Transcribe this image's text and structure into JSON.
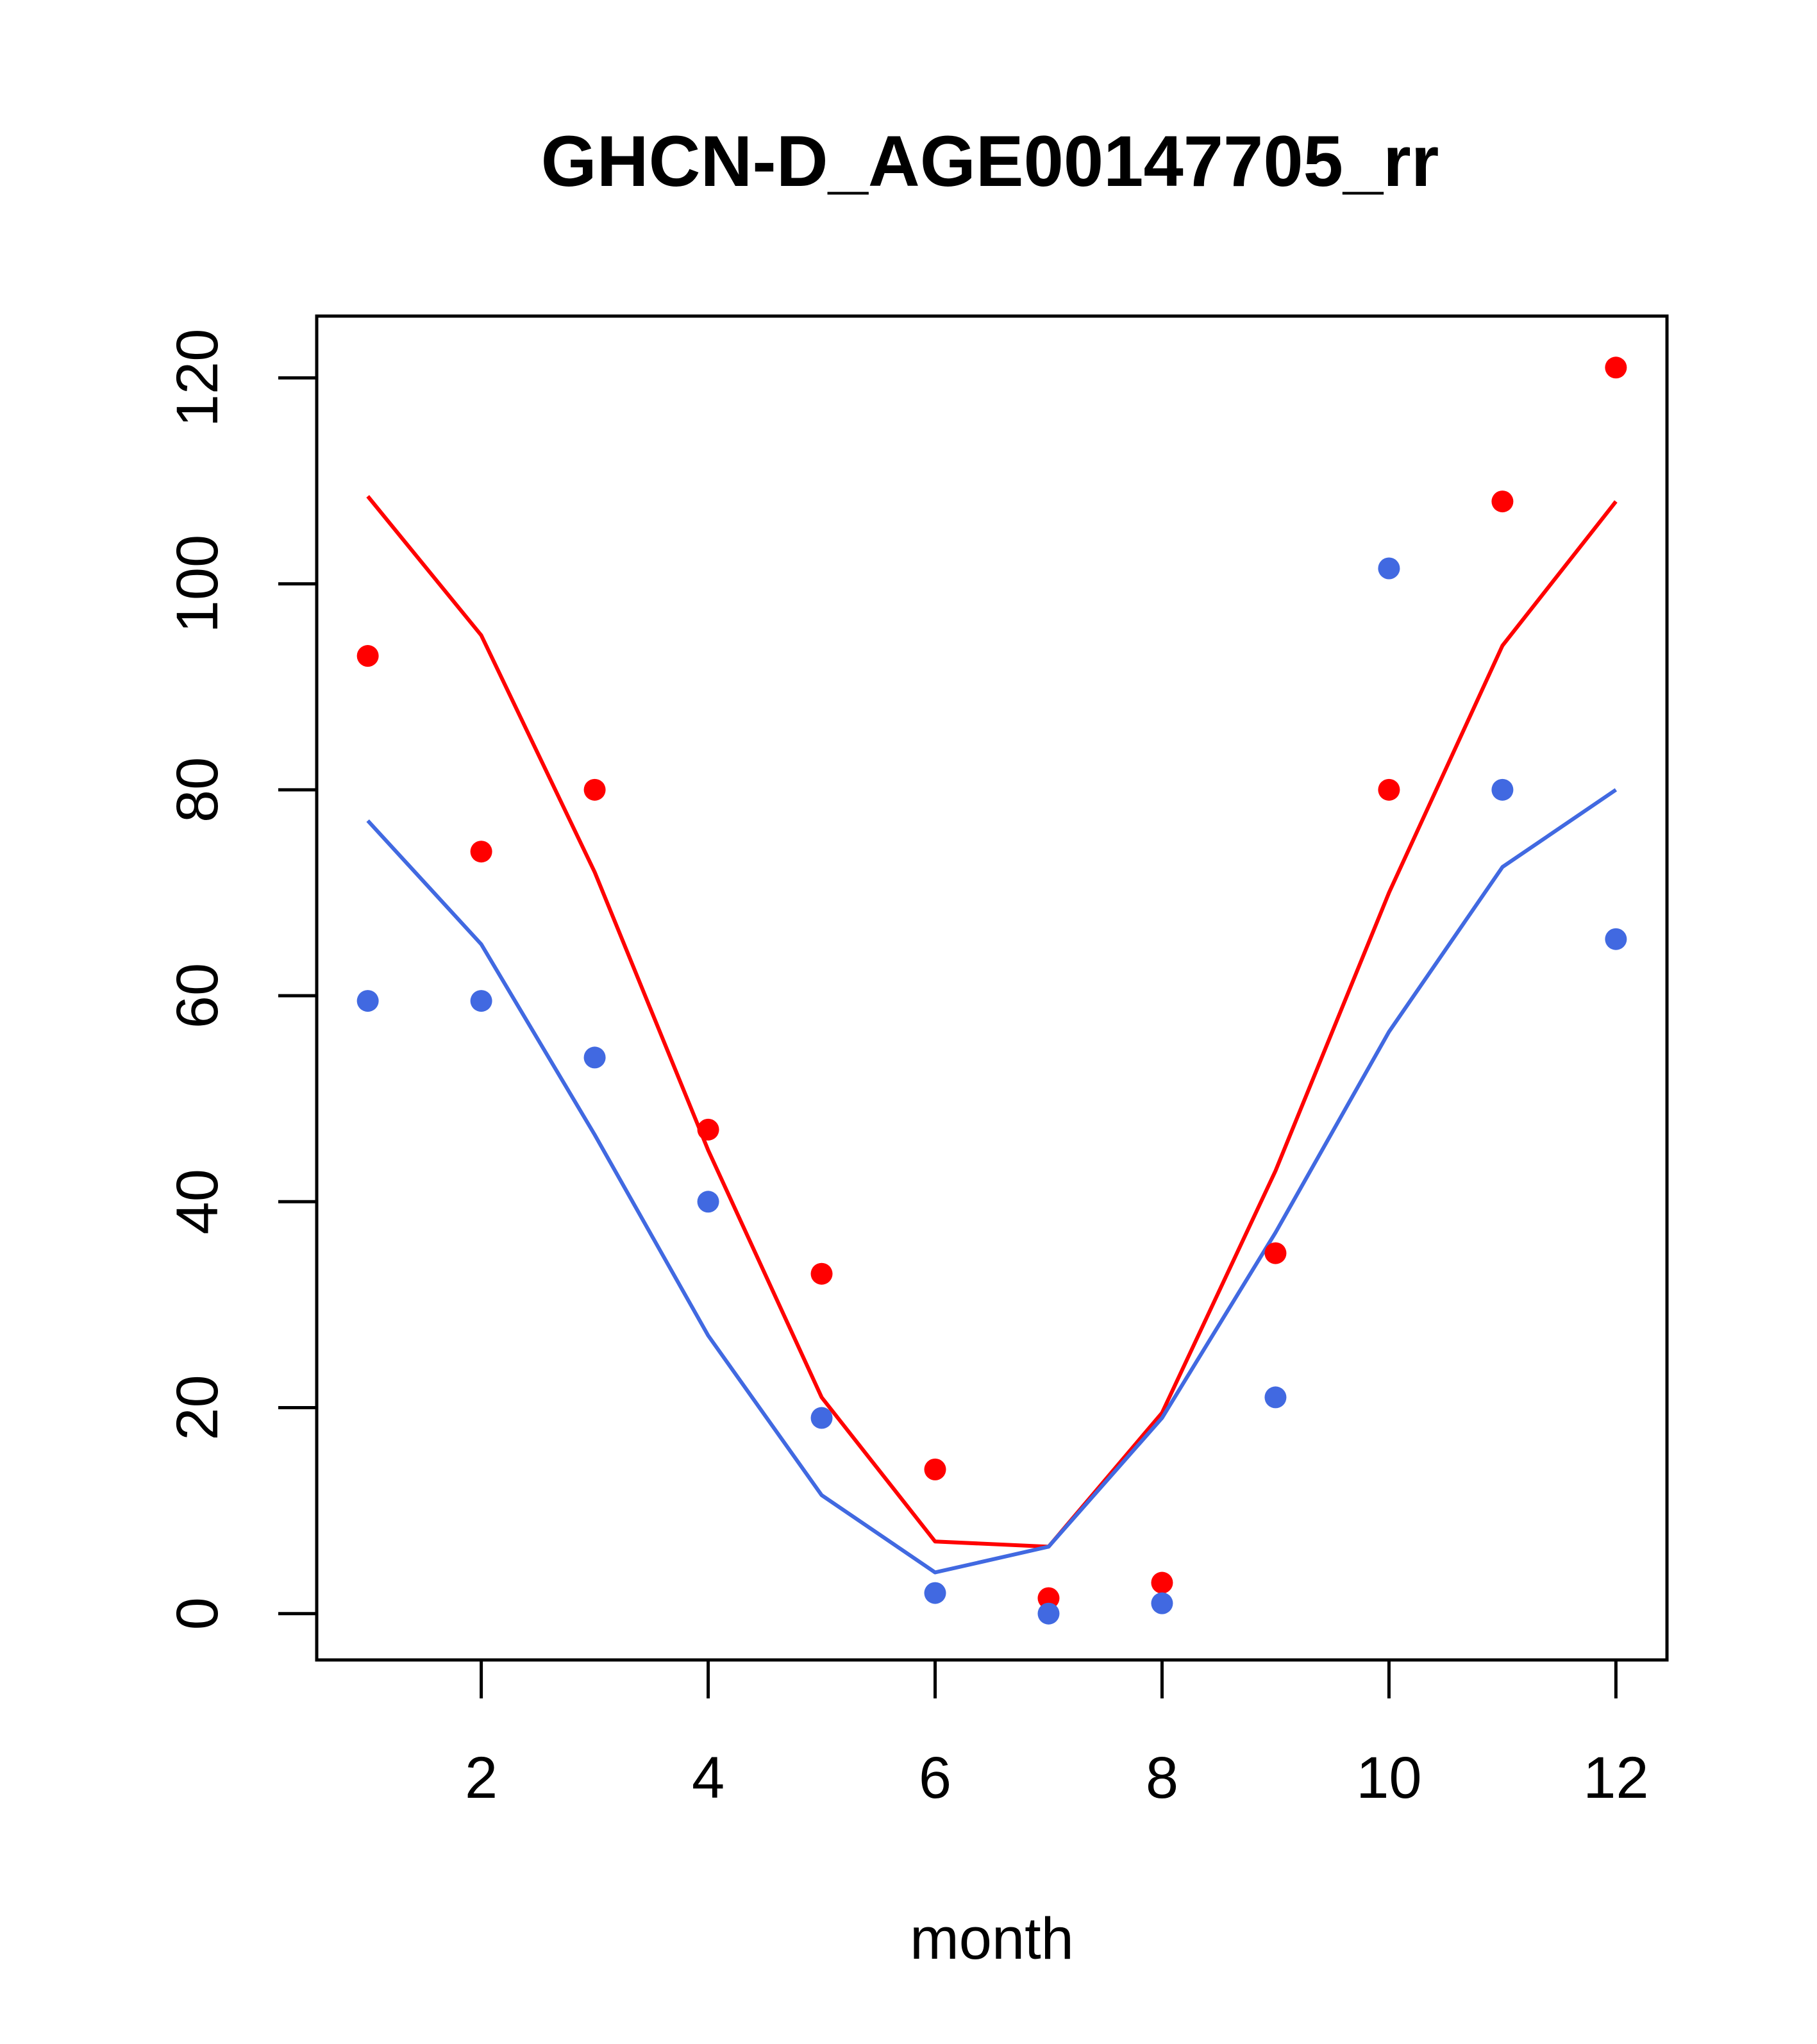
{
  "chart_data": {
    "type": "scatter",
    "title": "GHCN-D_AGE00147705_rr",
    "xlabel": "month",
    "ylabel": "",
    "xlim": [
      0.55,
      12.45
    ],
    "ylim": [
      -4.5,
      126
    ],
    "x_ticks": [
      2,
      4,
      6,
      8,
      10,
      12
    ],
    "y_ticks": [
      0,
      20,
      40,
      60,
      80,
      100,
      120
    ],
    "grid": false,
    "colors": {
      "red": "#ff0000",
      "blue": "#4169e1"
    },
    "series": [
      {
        "kind": "points",
        "color": "#ff0000",
        "x": [
          1,
          2,
          3,
          4,
          5,
          6,
          7,
          8,
          9,
          10,
          11,
          12
        ],
        "values": [
          93,
          74,
          80,
          47,
          33,
          14,
          1.5,
          3,
          35,
          80,
          108,
          121
        ]
      },
      {
        "kind": "points",
        "color": "#4169e1",
        "x": [
          1,
          2,
          3,
          4,
          5,
          6,
          7,
          8,
          9,
          10,
          11,
          12
        ],
        "values": [
          59.5,
          59.5,
          54,
          40,
          19,
          2,
          0,
          1,
          21,
          101.5,
          80,
          65.5
        ]
      },
      {
        "kind": "line",
        "color": "#ff0000",
        "x": [
          1,
          2,
          3,
          4,
          5,
          6,
          7,
          8,
          9,
          10,
          11,
          12
        ],
        "values": [
          108.5,
          95,
          72,
          45,
          21,
          7,
          6.5,
          19.5,
          43,
          70,
          94,
          108
        ]
      },
      {
        "kind": "line",
        "color": "#4169e1",
        "x": [
          1,
          2,
          3,
          4,
          5,
          6,
          7,
          8,
          9,
          10,
          11,
          12
        ],
        "values": [
          77,
          65,
          46.5,
          27,
          11.5,
          4,
          6.5,
          19,
          37,
          56.5,
          72.5,
          80
        ]
      }
    ]
  }
}
